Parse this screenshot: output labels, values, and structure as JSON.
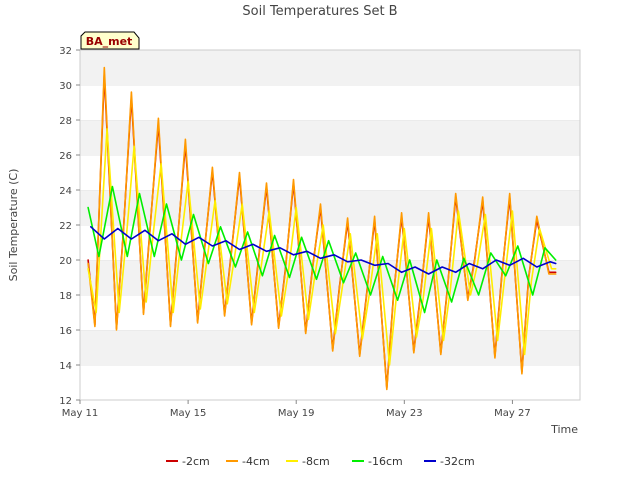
{
  "chart_data": {
    "type": "line",
    "title": "Soil Temperatures Set B",
    "xlabel": "Time",
    "ylabel": "Soil Temperature (C)",
    "site_badge": "BA_met",
    "ylim": [
      12,
      32
    ],
    "yticks": [
      12,
      14,
      16,
      18,
      20,
      22,
      24,
      26,
      28,
      30,
      32
    ],
    "xlim": [
      0,
      18.5
    ],
    "x_unit": "days since May 11",
    "xtick_labels": [
      {
        "x": 0,
        "label": "May 11"
      },
      {
        "x": 4,
        "label": "May 15"
      },
      {
        "x": 8,
        "label": "May 19"
      },
      {
        "x": 12,
        "label": "May 23"
      },
      {
        "x": 16,
        "label": "May 27"
      }
    ],
    "grid": "horizontal bands",
    "legend_position": "bottom",
    "series": [
      {
        "name": "-2cm",
        "color": "#cc0000",
        "x": [
          0.3,
          0.55,
          0.9,
          1.35,
          1.6,
          1.9,
          2.35,
          2.6,
          2.9,
          3.35,
          3.6,
          3.9,
          4.35,
          4.6,
          4.9,
          5.35,
          5.6,
          5.9,
          6.35,
          6.6,
          6.9,
          7.35,
          7.6,
          7.9,
          8.35,
          8.6,
          8.9,
          9.35,
          9.6,
          9.9,
          10.35,
          10.6,
          10.9,
          11.35,
          11.6,
          11.9,
          12.35,
          12.6,
          12.9,
          13.35,
          13.6,
          13.9,
          14.35,
          14.6,
          14.9,
          15.35,
          15.6,
          15.9,
          16.35,
          16.6,
          16.9,
          17.35,
          17.6
        ],
        "y": [
          20.0,
          16.3,
          30.6,
          16.1,
          21.5,
          29.3,
          17.0,
          22.0,
          27.8,
          16.3,
          21.0,
          26.6,
          16.5,
          20.5,
          25.1,
          16.9,
          20.5,
          24.8,
          16.4,
          20.0,
          24.2,
          16.2,
          19.5,
          24.4,
          15.9,
          19.5,
          23.0,
          14.9,
          18.5,
          22.2,
          14.6,
          18.0,
          22.3,
          12.7,
          18.0,
          22.5,
          14.8,
          18.0,
          22.5,
          14.7,
          18.5,
          23.6,
          17.8,
          20.0,
          23.4,
          14.5,
          19.0,
          23.6,
          13.6,
          19.0,
          22.3,
          19.3,
          19.3
        ]
      },
      {
        "name": "-4cm",
        "color": "#ff9900",
        "x": [
          0.3,
          0.55,
          0.9,
          1.35,
          1.6,
          1.9,
          2.35,
          2.6,
          2.9,
          3.35,
          3.6,
          3.9,
          4.35,
          4.6,
          4.9,
          5.35,
          5.6,
          5.9,
          6.35,
          6.6,
          6.9,
          7.35,
          7.6,
          7.9,
          8.35,
          8.6,
          8.9,
          9.35,
          9.6,
          9.9,
          10.35,
          10.6,
          10.9,
          11.35,
          11.6,
          11.9,
          12.35,
          12.6,
          12.9,
          13.35,
          13.6,
          13.9,
          14.35,
          14.6,
          14.9,
          15.35,
          15.6,
          15.9,
          16.35,
          16.6,
          16.9,
          17.35,
          17.6
        ],
        "y": [
          19.8,
          16.2,
          31.0,
          16.0,
          21.4,
          29.6,
          16.9,
          21.9,
          28.1,
          16.2,
          20.9,
          26.9,
          16.4,
          20.4,
          25.3,
          16.8,
          20.4,
          25.0,
          16.3,
          19.9,
          24.4,
          16.1,
          19.4,
          24.6,
          15.8,
          19.4,
          23.2,
          14.8,
          18.4,
          22.4,
          14.5,
          17.9,
          22.5,
          12.6,
          17.9,
          22.7,
          14.7,
          17.9,
          22.7,
          14.6,
          18.4,
          23.8,
          17.7,
          19.9,
          23.6,
          14.4,
          18.9,
          23.8,
          13.5,
          18.9,
          22.5,
          19.2,
          19.2
        ]
      },
      {
        "name": "-8cm",
        "color": "#ffee00",
        "x": [
          0.3,
          0.6,
          1.0,
          1.45,
          1.7,
          2.0,
          2.45,
          2.7,
          3.0,
          3.45,
          3.7,
          4.0,
          4.45,
          4.7,
          5.0,
          5.45,
          5.7,
          6.0,
          6.45,
          6.7,
          7.0,
          7.45,
          7.7,
          8.0,
          8.45,
          8.7,
          9.0,
          9.45,
          9.7,
          10.0,
          10.45,
          10.7,
          11.0,
          11.45,
          11.7,
          12.0,
          12.45,
          12.7,
          13.0,
          13.45,
          13.7,
          14.0,
          14.45,
          14.7,
          15.0,
          15.45,
          15.7,
          16.0,
          16.45,
          16.7,
          17.0,
          17.45,
          17.6
        ],
        "y": [
          19.5,
          17.0,
          27.5,
          17.0,
          21.0,
          26.5,
          17.6,
          21.4,
          25.5,
          17.0,
          20.6,
          24.5,
          17.2,
          20.0,
          23.4,
          17.5,
          20.0,
          23.2,
          17.0,
          19.6,
          22.8,
          16.8,
          19.2,
          23.0,
          16.6,
          19.2,
          22.0,
          15.8,
          18.4,
          21.5,
          15.5,
          18.0,
          21.5,
          14.0,
          17.8,
          21.8,
          15.6,
          17.8,
          21.8,
          15.4,
          18.3,
          22.8,
          18.0,
          19.7,
          22.6,
          15.4,
          18.8,
          22.8,
          14.6,
          18.8,
          21.8,
          19.5,
          19.5
        ]
      },
      {
        "name": "-16cm",
        "color": "#00ee00",
        "x": [
          0.3,
          0.7,
          1.2,
          1.75,
          2.2,
          2.75,
          3.2,
          3.75,
          4.2,
          4.75,
          5.2,
          5.75,
          6.2,
          6.75,
          7.2,
          7.75,
          8.2,
          8.75,
          9.2,
          9.75,
          10.2,
          10.75,
          11.2,
          11.75,
          12.2,
          12.75,
          13.2,
          13.75,
          14.2,
          14.75,
          15.2,
          15.75,
          16.2,
          16.75,
          17.2,
          17.6
        ],
        "y": [
          23.0,
          20.2,
          24.2,
          20.2,
          23.8,
          20.2,
          23.2,
          20.0,
          22.6,
          19.8,
          21.9,
          19.6,
          21.6,
          19.1,
          21.4,
          19.0,
          21.3,
          18.9,
          21.1,
          18.7,
          20.4,
          18.0,
          20.2,
          17.7,
          20.0,
          17.0,
          20.0,
          17.6,
          20.1,
          18.0,
          20.4,
          19.1,
          20.8,
          18.0,
          20.7,
          20.0
        ]
      },
      {
        "name": "-32cm",
        "color": "#0000cc",
        "x": [
          0.4,
          0.9,
          1.4,
          1.9,
          2.4,
          2.9,
          3.4,
          3.9,
          4.4,
          4.9,
          5.4,
          5.9,
          6.4,
          6.9,
          7.4,
          7.9,
          8.4,
          8.9,
          9.4,
          9.9,
          10.4,
          10.9,
          11.4,
          11.9,
          12.4,
          12.9,
          13.4,
          13.9,
          14.4,
          14.9,
          15.4,
          15.9,
          16.4,
          16.9,
          17.4,
          17.6
        ],
        "y": [
          21.9,
          21.2,
          21.8,
          21.2,
          21.7,
          21.1,
          21.5,
          20.9,
          21.3,
          20.8,
          21.1,
          20.6,
          20.9,
          20.5,
          20.7,
          20.3,
          20.5,
          20.1,
          20.3,
          19.9,
          20.0,
          19.7,
          19.8,
          19.3,
          19.6,
          19.2,
          19.6,
          19.3,
          19.8,
          19.5,
          20.0,
          19.7,
          20.1,
          19.6,
          19.9,
          19.8
        ]
      }
    ]
  }
}
